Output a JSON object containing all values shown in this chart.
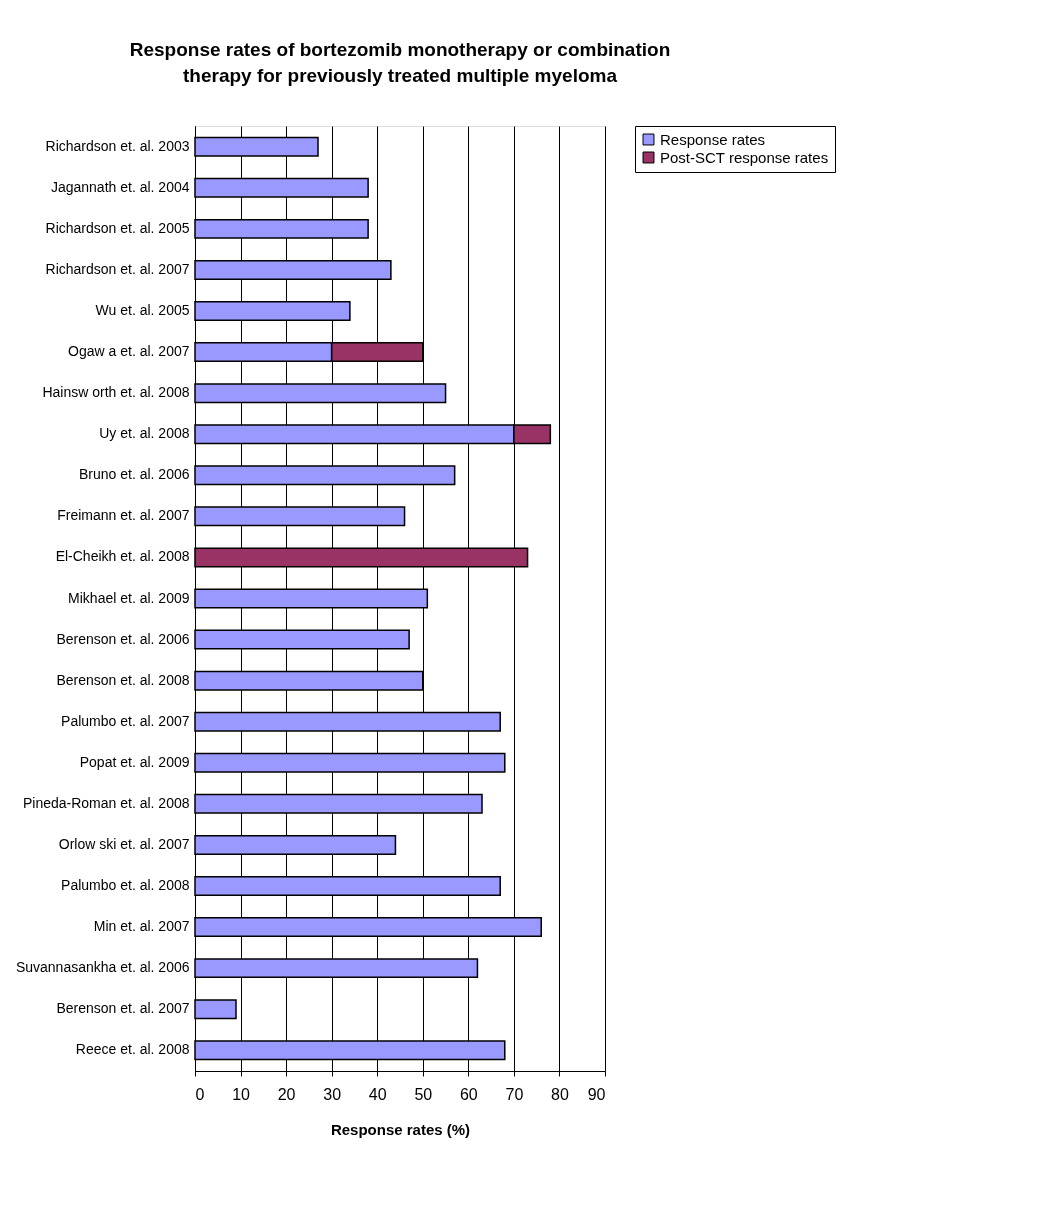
{
  "chart_data": {
    "type": "bar",
    "orientation": "horizontal",
    "stacked": true,
    "title": "Response rates of bortezomib monotherapy or combination therapy for previously treated multiple myeloma",
    "xlabel": "Response rates (%)",
    "categories": [
      "Richardson et. al. 2003",
      "Jagannath et. al. 2004",
      "Richardson et. al. 2005",
      "Richardson et. al. 2007",
      "Wu et. al. 2005",
      "Ogaw a et. al. 2007",
      "Hainsw orth et. al. 2008",
      "Uy et. al. 2008",
      "Bruno et. al. 2006",
      "Freimann et. al. 2007",
      "El-Cheikh et. al. 2008",
      "Mikhael et. al. 2009",
      "Berenson et. al. 2006",
      "Berenson et. al. 2008",
      "Palumbo et. al. 2007",
      "Popat et. al. 2009",
      "Pineda-Roman et. al. 2008",
      "Orlow ski et. al. 2007",
      "Palumbo et. al. 2008",
      "Min et. al. 2007",
      "Suvannasankha et. al. 2006",
      "Berenson et. al. 2007",
      "Reece et. al. 2008"
    ],
    "series": [
      {
        "name": "Response rates",
        "color": "#9999ff",
        "values": [
          27,
          38,
          38,
          43,
          34,
          30,
          55,
          70,
          57,
          46,
          null,
          51,
          47,
          50,
          67,
          68,
          63,
          44,
          67,
          76,
          62,
          9,
          68
        ]
      },
      {
        "name": "Post-SCT response rates",
        "color": "#993366",
        "values": [
          null,
          null,
          null,
          null,
          null,
          20,
          null,
          8,
          null,
          null,
          73,
          null,
          null,
          null,
          null,
          null,
          null,
          null,
          null,
          null,
          null,
          null,
          null
        ]
      }
    ],
    "xlim": [
      0,
      90
    ],
    "xticks": [
      0,
      10,
      20,
      30,
      40,
      50,
      60,
      70,
      80,
      90
    ],
    "grid": "x",
    "legend": "right"
  }
}
